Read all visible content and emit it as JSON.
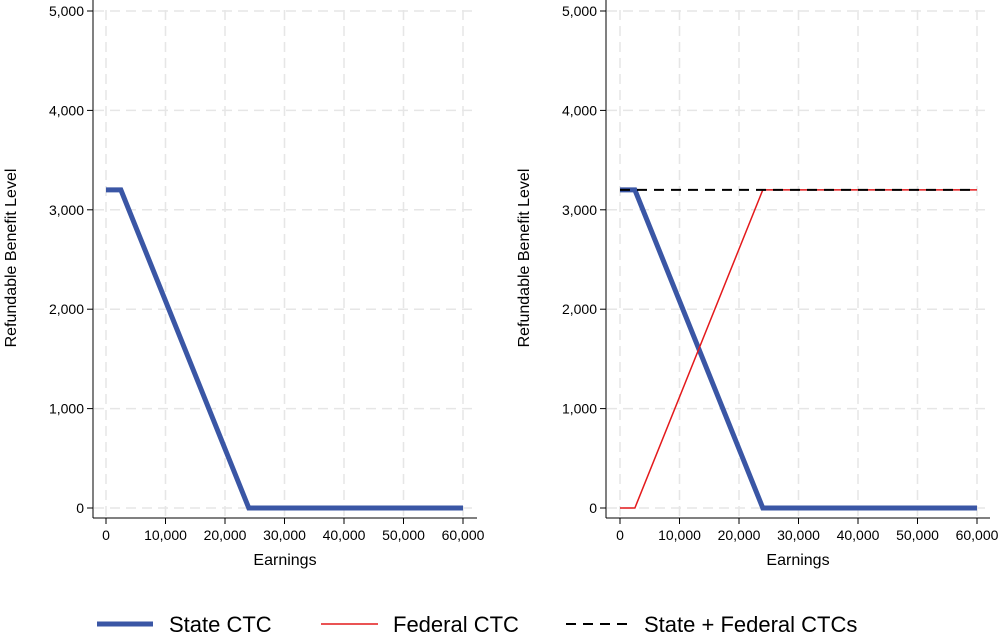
{
  "chart_data": [
    {
      "type": "line",
      "title": "",
      "xlabel": "Earnings",
      "ylabel": "Refundable Benefit Level",
      "xlim": [
        0,
        60000
      ],
      "ylim": [
        0,
        5000
      ],
      "xticks": [
        0,
        10000,
        20000,
        30000,
        40000,
        50000,
        60000
      ],
      "xtick_labels": [
        "0",
        "10,000",
        "20,000",
        "30,000",
        "40,000",
        "50,000",
        "60,000"
      ],
      "yticks": [
        0,
        1000,
        2000,
        3000,
        4000,
        5000
      ],
      "ytick_labels": [
        "0",
        "1,000",
        "2,000",
        "3,000",
        "4,000",
        "5,000"
      ],
      "grid": true,
      "series": [
        {
          "name": "State CTC",
          "color": "#3A56A5",
          "style": "solid-thick",
          "x": [
            0,
            2500,
            24000,
            60000
          ],
          "y": [
            3200,
            3200,
            0,
            0
          ]
        }
      ]
    },
    {
      "type": "line",
      "title": "",
      "xlabel": "Earnings",
      "ylabel": "Refundable Benefit Level",
      "xlim": [
        0,
        60000
      ],
      "ylim": [
        0,
        5000
      ],
      "xticks": [
        0,
        10000,
        20000,
        30000,
        40000,
        50000,
        60000
      ],
      "xtick_labels": [
        "0",
        "10,000",
        "20,000",
        "30,000",
        "40,000",
        "50,000",
        "60,000"
      ],
      "yticks": [
        0,
        1000,
        2000,
        3000,
        4000,
        5000
      ],
      "ytick_labels": [
        "0",
        "1,000",
        "2,000",
        "3,000",
        "4,000",
        "5,000"
      ],
      "grid": true,
      "series": [
        {
          "name": "State CTC",
          "color": "#3A56A5",
          "style": "solid-thick",
          "x": [
            0,
            2500,
            24000,
            60000
          ],
          "y": [
            3200,
            3200,
            0,
            0
          ]
        },
        {
          "name": "Federal CTC",
          "color": "#E41A1C",
          "style": "solid-thin",
          "x": [
            0,
            2500,
            24000,
            60000
          ],
          "y": [
            0,
            0,
            3200,
            3200
          ]
        },
        {
          "name": "State + Federal CTCs",
          "color": "#000000",
          "style": "dashed",
          "x": [
            0,
            60000
          ],
          "y": [
            3200,
            3200
          ]
        }
      ]
    }
  ],
  "legend": {
    "placement": "bottom",
    "items": [
      {
        "label": "State CTC",
        "color": "#3A56A5",
        "style": "solid-thick"
      },
      {
        "label": "Federal CTC",
        "color": "#E41A1C",
        "style": "solid-thin"
      },
      {
        "label": "State + Federal CTCs",
        "color": "#000000",
        "style": "dashed"
      }
    ]
  }
}
